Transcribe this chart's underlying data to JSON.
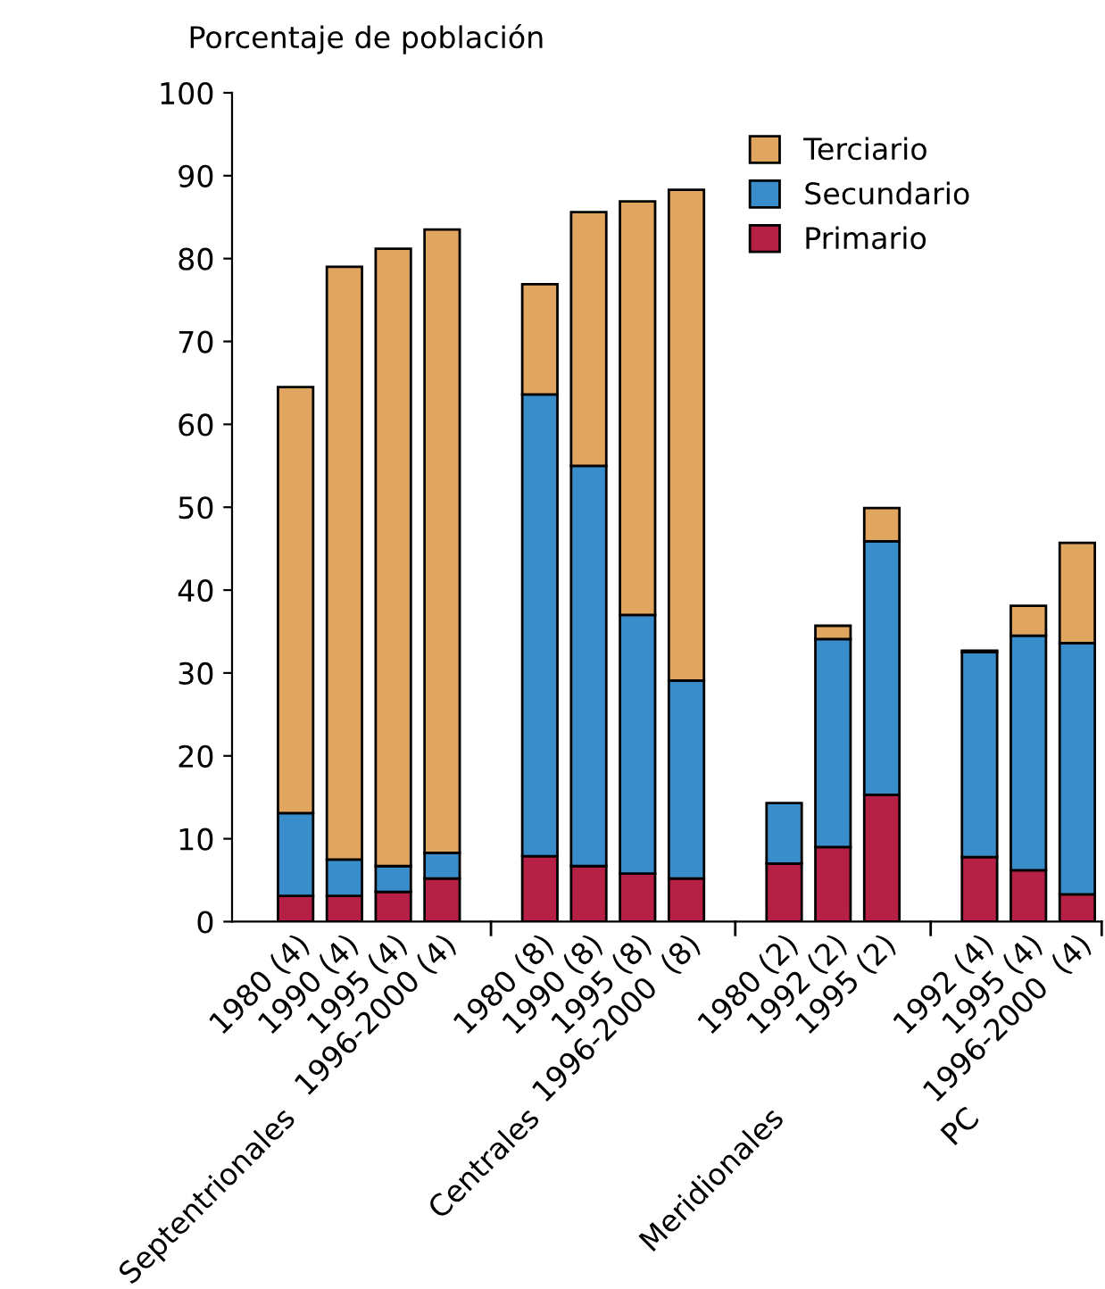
{
  "chart_data": {
    "type": "bar",
    "stacked": true,
    "ylabel": "Porcentaje de población",
    "categories": [
      "1980 (4)",
      "1990 (4)",
      "1995 (4)",
      "1996-2000 (4)",
      null,
      "1980 (8)",
      "1990 (8)",
      "1995 (8)",
      "1996-2000  (8)",
      null,
      "1980 (2)",
      "1992 (2)",
      "1995 (2)",
      null,
      "1992 (4)",
      "1995 (4)",
      "1996-2000  (4)"
    ],
    "series": [
      {
        "name": "Primario",
        "color": "#b72045",
        "values": [
          3.1,
          3.1,
          3.6,
          5.2,
          null,
          7.9,
          6.7,
          5.8,
          5.2,
          null,
          7.0,
          9.0,
          15.3,
          null,
          7.8,
          6.2,
          3.3
        ]
      },
      {
        "name": "Secundario",
        "color": "#3a8dcb",
        "values": [
          10.0,
          4.4,
          3.1,
          3.1,
          null,
          55.7,
          48.3,
          31.2,
          23.9,
          null,
          7.3,
          25.1,
          30.6,
          null,
          24.7,
          28.3,
          30.3
        ]
      },
      {
        "name": "Terciario",
        "color": "#e0a55f",
        "values": [
          51.4,
          71.5,
          74.5,
          75.2,
          null,
          13.3,
          30.6,
          49.9,
          59.2,
          null,
          null,
          1.6,
          4.0,
          null,
          0.2,
          3.6,
          12.1
        ]
      }
    ],
    "annotations": [
      "Septentrionales",
      "Centrales",
      "Meridionales",
      "PC"
    ],
    "ylim": [
      0,
      100
    ],
    "yticks": [
      0,
      10,
      20,
      30,
      40,
      50,
      60,
      70,
      80,
      90,
      100
    ],
    "grid": false,
    "legend": "top right"
  }
}
